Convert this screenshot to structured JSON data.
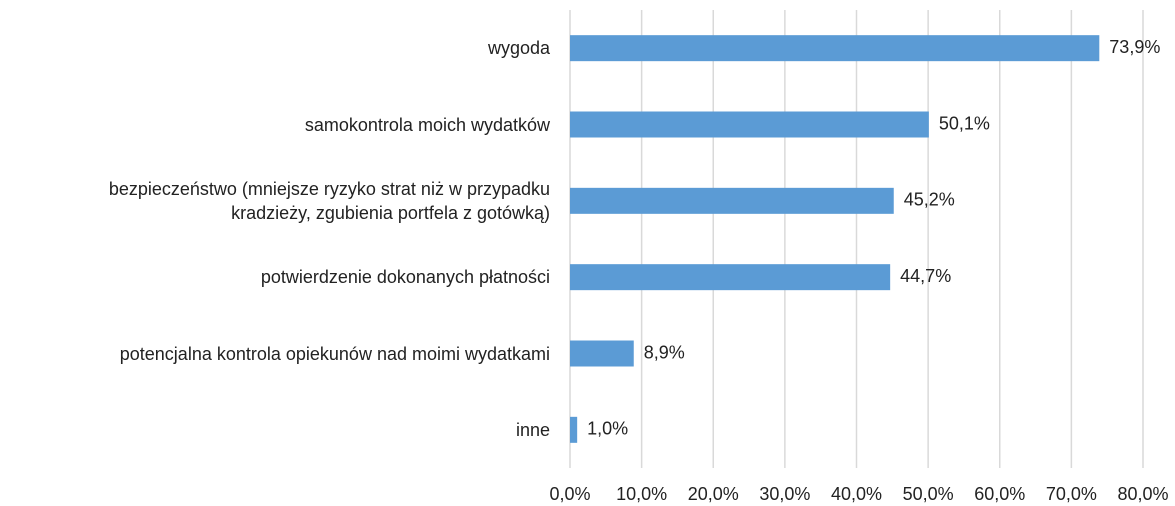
{
  "chart_data": {
    "type": "barh",
    "categories": [
      "wygoda",
      "samokontrola moich wydatków",
      "bezpieczeństwo (mniejsze ryzyko strat niż w przypadku\nkradzieży, zgubienia portfela z gotówką)",
      "potwierdzenie dokonanych płatności",
      "potencjalna kontrola opiekunów nad moimi wydatkami",
      "inne"
    ],
    "values": [
      73.9,
      50.1,
      45.2,
      44.7,
      8.9,
      1.0
    ],
    "value_labels": [
      "73,9%",
      "50,1%",
      "45,2%",
      "44,7%",
      "8,9%",
      "1,0%"
    ],
    "color": "#5b9bd5",
    "xlim": [
      0,
      80
    ],
    "xticks": [
      {
        "value": 0,
        "label": "0,0%"
      },
      {
        "value": 10,
        "label": "10,0%"
      },
      {
        "value": 20,
        "label": "20,0%"
      },
      {
        "value": 30,
        "label": "30,0%"
      },
      {
        "value": 40,
        "label": "40,0%"
      },
      {
        "value": 50,
        "label": "50,0%"
      },
      {
        "value": 60,
        "label": "60,0%"
      },
      {
        "value": 70,
        "label": "70,0%"
      },
      {
        "value": 80,
        "label": "80,0%"
      }
    ],
    "grid": true
  }
}
